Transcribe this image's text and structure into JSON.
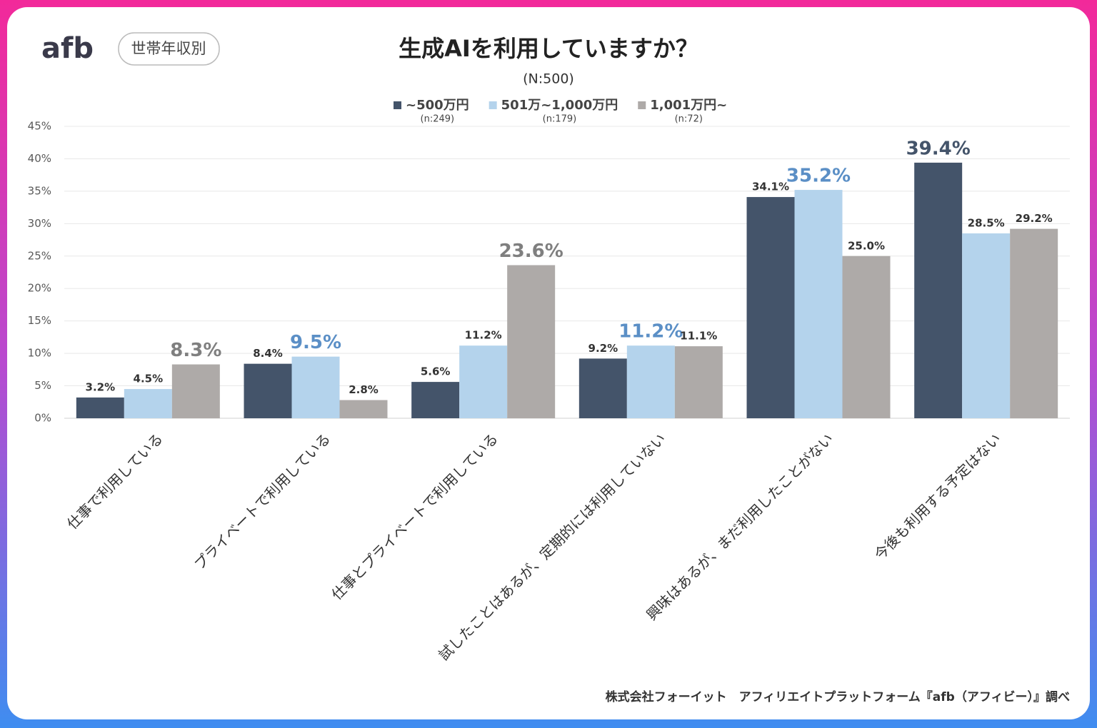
{
  "logo": "afb",
  "badge": "世帯年収別",
  "source": "株式会社フォーイット　アフィリエイトプラットフォーム『afb（アフィビー）』調べ",
  "chart_data": {
    "type": "bar",
    "title": "生成AIを利用していますか？",
    "subtitle": "(N:500)",
    "categories": [
      "仕事で利用している",
      "プライベートで利用している",
      "仕事とプライベートで利用している",
      "試したことはあるが、定期的には利用していない",
      "興味はあるが、まだ利用したことがない",
      "今後も利用する予定はない"
    ],
    "series": [
      {
        "name": "~500万円",
        "n_label": "(n:249)",
        "color": "#44546a",
        "highlight_color": "#44546a",
        "values": [
          3.2,
          8.4,
          5.6,
          9.2,
          34.1,
          39.4
        ],
        "value_labels": [
          "3.2%",
          "8.4%",
          "5.6%",
          "9.2%",
          "34.1%",
          "39.4%"
        ]
      },
      {
        "name": "501万~1,000万円",
        "n_label": "(n:179)",
        "color": "#b4d3ec",
        "highlight_color": "#5b8fc6",
        "values": [
          4.5,
          9.5,
          11.2,
          11.2,
          35.2,
          28.5
        ],
        "value_labels": [
          "4.5%",
          "9.5%",
          "11.2%",
          "11.2%",
          "35.2%",
          "28.5%"
        ]
      },
      {
        "name": "1,001万円~",
        "n_label": "(n:72)",
        "color": "#aeaaa8",
        "highlight_color": "#7f7f7f",
        "values": [
          8.3,
          2.8,
          23.6,
          11.1,
          25.0,
          29.2
        ],
        "value_labels": [
          "8.3%",
          "2.8%",
          "23.6%",
          "11.1%",
          "25.0%",
          "29.2%"
        ]
      }
    ],
    "ylim": [
      0,
      45
    ],
    "yticks": [
      {
        "value": 0,
        "label": "0%"
      },
      {
        "value": 5,
        "label": "5%"
      },
      {
        "value": 10,
        "label": "10%"
      },
      {
        "value": 15,
        "label": "15%"
      },
      {
        "value": 20,
        "label": "20%"
      },
      {
        "value": 25,
        "label": "25%"
      },
      {
        "value": 30,
        "label": "30%"
      },
      {
        "value": 35,
        "label": "35%"
      },
      {
        "value": 40,
        "label": "40%"
      },
      {
        "value": 45,
        "label": "45%"
      }
    ],
    "grid": true
  }
}
